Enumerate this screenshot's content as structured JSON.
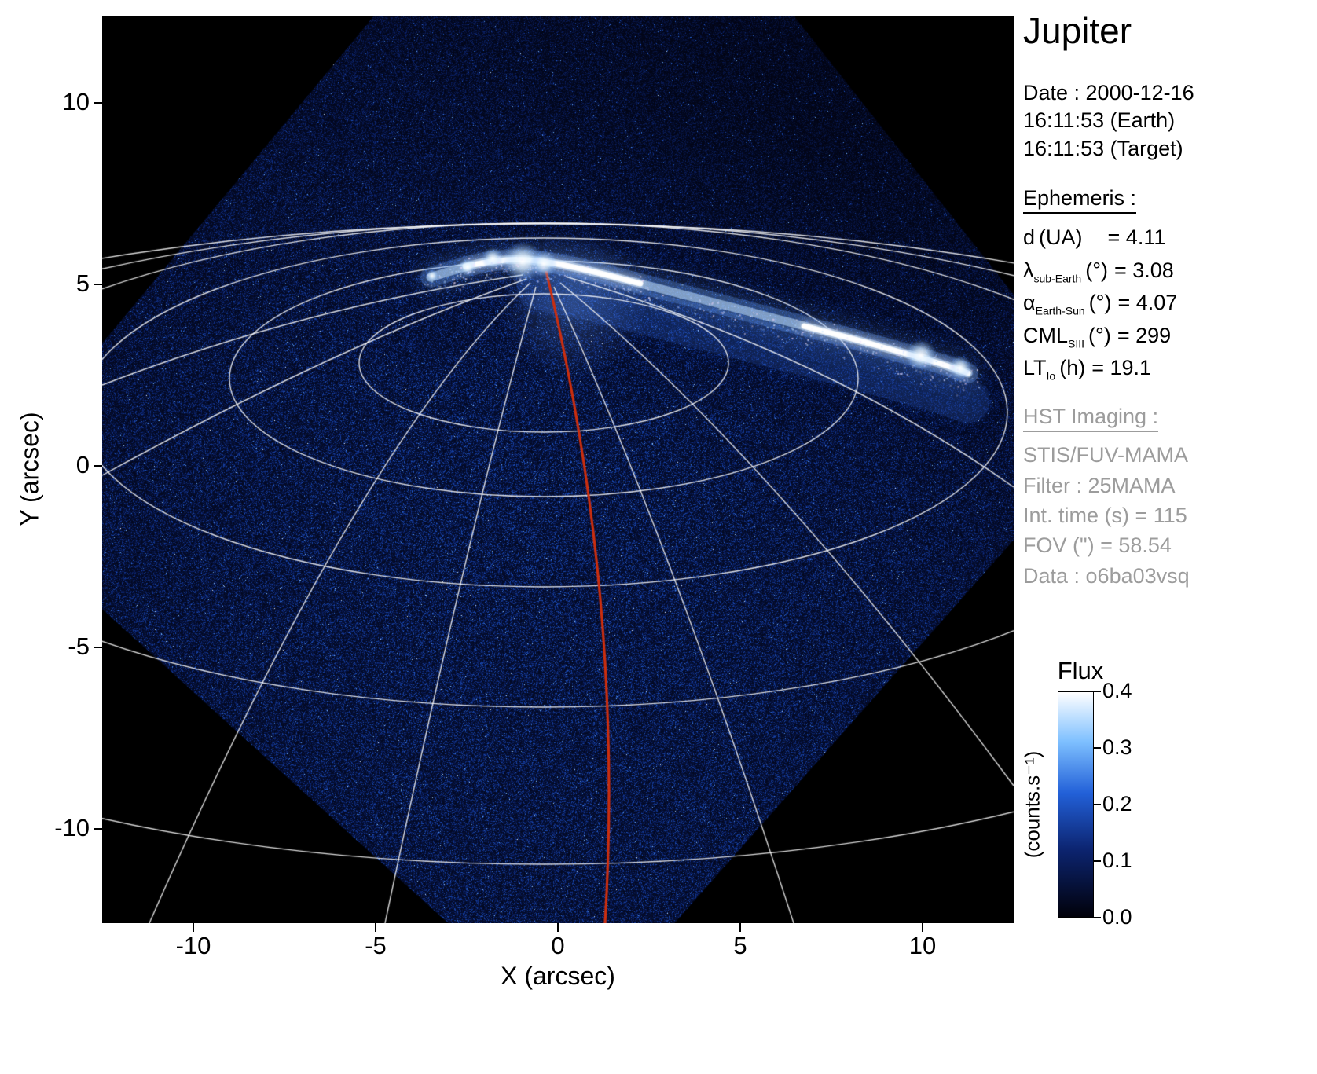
{
  "panel": {
    "title": "Jupiter",
    "date_line": "Date : 2000-12-16",
    "time_earth": "16:11:53 (Earth)",
    "time_target": "16:11:53 (Target)",
    "ephemeris": {
      "heading": "Ephemeris :",
      "rows": [
        {
          "sym": "d",
          "sub": "",
          "unit": "(UA)",
          "value": "= 4.11"
        },
        {
          "sym": "λ",
          "sub": "sub-Earth",
          "unit": "(°)",
          "value": "= 3.08"
        },
        {
          "sym": "α",
          "sub": "Earth-Sun",
          "unit": "(°)",
          "value": "= 4.07"
        },
        {
          "sym": "CML",
          "sub": "SIII",
          "unit": "(°)",
          "value": "= 299"
        },
        {
          "sym": "LT",
          "sub": "Io",
          "unit": "(h)",
          "value": "= 19.1"
        }
      ]
    },
    "hst": {
      "heading": "HST Imaging :",
      "lines": [
        "STIS/FUV-MAMA",
        "Filter : 25MAMA",
        "Int. time (s) = 115",
        "FOV (\") = 58.54",
        "Data : o6ba03vsq"
      ]
    }
  },
  "chart_data": {
    "type": "heatmap",
    "title": "Jupiter",
    "xlabel": "X (arcsec)",
    "ylabel": "Y (arcsec)",
    "xlim": [
      -12.5,
      12.5
    ],
    "ylim": [
      -12.6,
      12.4
    ],
    "xticks": [
      -10,
      -5,
      0,
      5,
      10
    ],
    "yticks": [
      10,
      5,
      0,
      -5,
      -10
    ],
    "colorbar": {
      "title": "Flux",
      "unit": "(counts.s⁻¹)",
      "range": [
        0.0,
        0.4
      ],
      "tick_labels": [
        "0.0",
        "0.1",
        "0.2",
        "0.3",
        "0.4"
      ],
      "colormap_stops": [
        {
          "t": 0.0,
          "c": "#01010a"
        },
        {
          "t": 0.3,
          "c": "#0c2470"
        },
        {
          "t": 0.55,
          "c": "#2260d8"
        },
        {
          "t": 0.78,
          "c": "#7ec0ff"
        },
        {
          "t": 1.0,
          "c": "#ffffff"
        }
      ]
    },
    "overlays": {
      "graticule_color": "#ffffff",
      "cml_meridian_color": "#cc2e0e",
      "aurora": "Bright FUV northern auroral oval near the limb, brightest around (-1.5, 5.3) and (10, 3) arcsec"
    }
  }
}
